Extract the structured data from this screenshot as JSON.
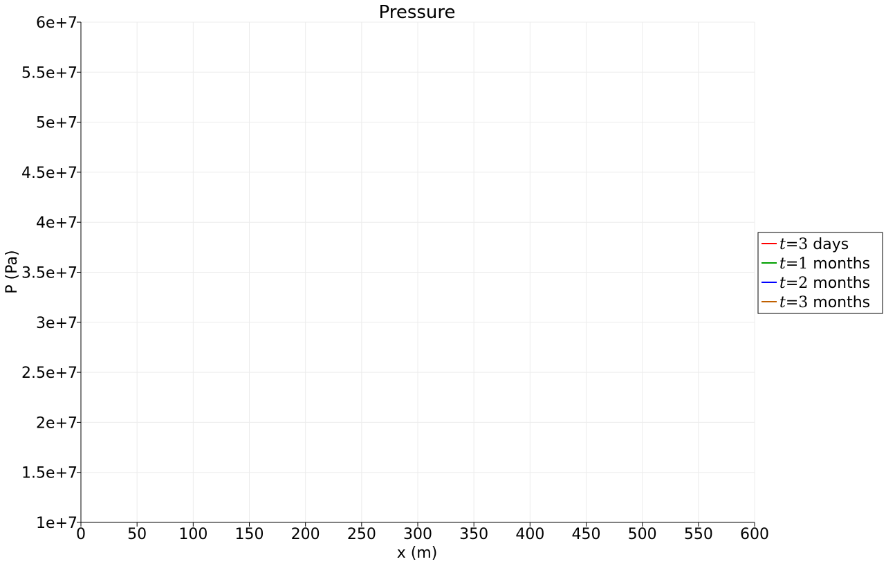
{
  "chart_data": {
    "type": "line",
    "title": "Pressure",
    "xlabel": "x (m)",
    "ylabel": "P (Pa)",
    "xlim": [
      0,
      600
    ],
    "ylim": [
      10000000,
      60000000
    ],
    "x_ticks": [
      0,
      50,
      100,
      150,
      200,
      250,
      300,
      350,
      400,
      450,
      500,
      550,
      600
    ],
    "x_tick_labels": [
      "0",
      "50",
      "100",
      "150",
      "200",
      "250",
      "300",
      "350",
      "400",
      "450",
      "500",
      "550",
      "600"
    ],
    "y_ticks": [
      10000000,
      15000000,
      20000000,
      25000000,
      30000000,
      35000000,
      40000000,
      45000000,
      50000000,
      55000000,
      60000000
    ],
    "y_tick_labels": [
      "1e+7",
      "1.5e+7",
      "2e+7",
      "2.5e+7",
      "3e+7",
      "3.5e+7",
      "4e+7",
      "4.5e+7",
      "5e+7",
      "5.5e+7",
      "6e+7"
    ],
    "grid": true,
    "legend_position": "right",
    "series": [
      {
        "name_var": "t",
        "name_value": "3",
        "name_unit": "days",
        "color": "#ff0000",
        "x": [],
        "y": []
      },
      {
        "name_var": "t",
        "name_value": "1",
        "name_unit": "months",
        "color": "#00a000",
        "x": [],
        "y": []
      },
      {
        "name_var": "t",
        "name_value": "2",
        "name_unit": "months",
        "color": "#0000ff",
        "x": [],
        "y": []
      },
      {
        "name_var": "t",
        "name_value": "3",
        "name_unit": "months",
        "color": "#c06000",
        "x": [],
        "y": []
      }
    ]
  }
}
